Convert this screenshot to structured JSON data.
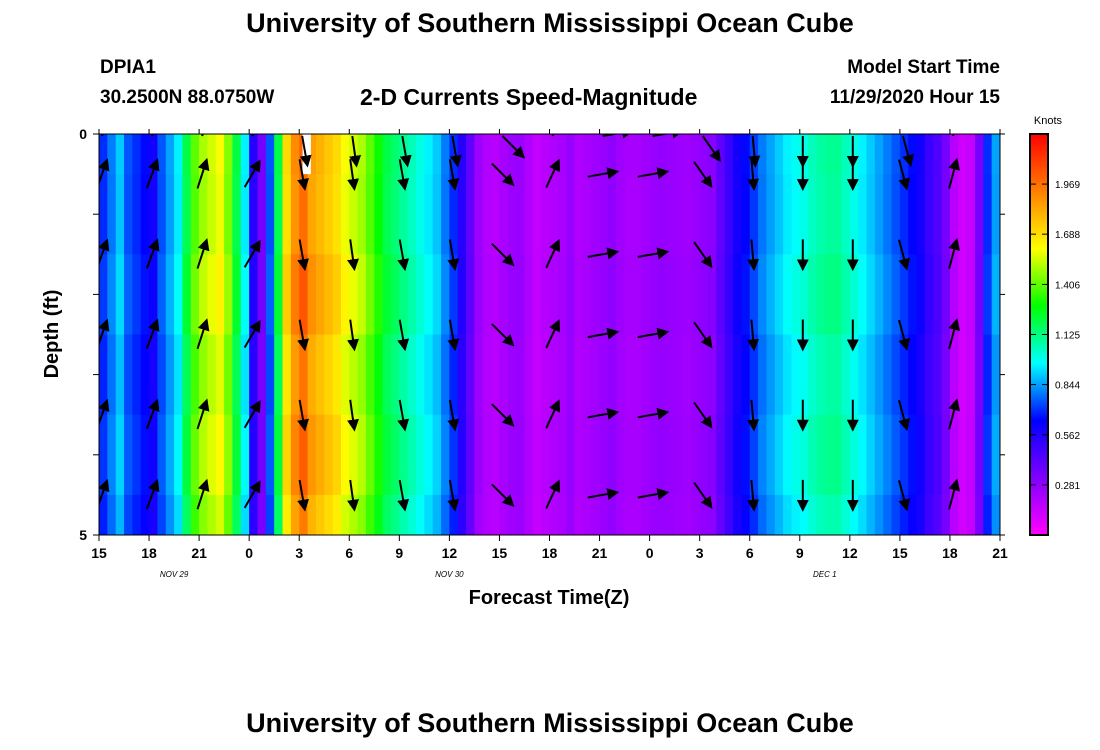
{
  "header": {
    "title": "University of Southern Mississippi Ocean Cube",
    "station_id": "DPIA1",
    "station_coords": "30.2500N 88.0750W",
    "subtitle": "2-D Currents Speed-Magnitude",
    "model_start_label": "Model Start Time",
    "model_start_value": "11/29/2020 Hour 15"
  },
  "footer": {
    "title": "University of Southern Mississippi Ocean Cube"
  },
  "chart_data": {
    "type": "heatmap",
    "title": "2-D Currents Speed-Magnitude",
    "xlabel": "Forecast Time(Z)",
    "ylabel": "Depth (ft)",
    "x_ticks": [
      "15",
      "18",
      "21",
      "0",
      "3",
      "6",
      "9",
      "12",
      "15",
      "18",
      "21",
      "0",
      "3",
      "6",
      "9",
      "12",
      "15",
      "18",
      "21"
    ],
    "x_range_hours": [
      0,
      54
    ],
    "date_labels": [
      {
        "text": "NOV 29",
        "hour": 4.5
      },
      {
        "text": "NOV 30",
        "hour": 21
      },
      {
        "text": "DEC 1",
        "hour": 43.5
      }
    ],
    "y_ticks": [
      "0",
      "5"
    ],
    "ylim": [
      0,
      5
    ],
    "colorbar": {
      "units": "Knots",
      "ticks": [
        "1.969",
        "1.688",
        "1.406",
        "1.125",
        "0.844",
        "0.562",
        "0.281"
      ],
      "tick_values": [
        1.969,
        1.688,
        1.406,
        1.125,
        0.844,
        0.562,
        0.281
      ],
      "range": [
        0,
        2.25
      ],
      "colors": [
        "#ff00ff",
        "#8000ff",
        "#0000ff",
        "#00ffff",
        "#00ff00",
        "#ffff00",
        "#ff8000",
        "#ff0000"
      ]
    },
    "speed_hours": [
      0,
      0.5,
      1,
      1.5,
      2,
      2.5,
      3,
      3.5,
      4,
      4.5,
      5,
      5.5,
      6,
      6.5,
      7,
      7.5,
      8,
      8.5,
      9,
      9.5,
      10,
      10.5,
      11,
      11.5,
      12,
      12.5,
      13,
      13.5,
      14,
      14.5,
      15,
      15.5,
      16,
      16.5,
      17,
      17.5,
      18,
      18.5,
      19,
      19.5,
      20,
      20.5,
      21,
      21.5,
      22,
      22.5,
      23,
      23.5,
      24,
      24.5,
      25,
      25.5,
      26,
      26.5,
      27,
      27.5,
      28,
      28.5,
      29,
      29.5,
      30,
      30.5,
      31,
      31.5,
      32,
      32.5,
      33,
      33.5,
      34,
      34.5,
      35,
      35.5,
      36,
      36.5,
      37,
      37.5,
      38,
      38.5,
      39,
      39.5,
      40,
      40.5,
      41,
      41.5,
      42,
      42.5,
      43,
      43.5,
      44,
      44.5,
      45,
      45.5,
      46,
      46.5,
      47,
      47.5,
      48,
      48.5,
      49,
      49.5,
      50,
      50.5,
      51,
      51.5,
      52,
      52.5,
      53,
      53.5
    ],
    "speed_knots": [
      0.7,
      0.8,
      0.9,
      0.75,
      0.7,
      0.65,
      0.6,
      0.75,
      0.85,
      0.95,
      1.2,
      1.4,
      1.5,
      1.55,
      1.6,
      1.45,
      1.2,
      0.95,
      0.55,
      0.35,
      0.75,
      1.2,
      1.7,
      1.9,
      2.0,
      1.85,
      1.8,
      1.75,
      1.7,
      1.6,
      1.55,
      1.5,
      1.4,
      1.3,
      1.2,
      1.15,
      1.1,
      1.05,
      1.0,
      0.95,
      0.9,
      0.8,
      0.7,
      0.55,
      0.4,
      0.25,
      0.2,
      0.18,
      0.22,
      0.25,
      0.26,
      0.2,
      0.15,
      0.18,
      0.2,
      0.22,
      0.26,
      0.2,
      0.22,
      0.24,
      0.26,
      0.28,
      0.24,
      0.22,
      0.22,
      0.24,
      0.26,
      0.27,
      0.26,
      0.25,
      0.24,
      0.26,
      0.28,
      0.3,
      0.4,
      0.5,
      0.6,
      0.65,
      0.72,
      0.8,
      0.85,
      0.9,
      0.95,
      0.98,
      1.0,
      1.05,
      1.08,
      1.1,
      1.1,
      1.05,
      1.0,
      0.95,
      0.9,
      0.85,
      0.8,
      0.75,
      0.7,
      0.65,
      0.6,
      0.5,
      0.45,
      0.35,
      0.18,
      0.12,
      0.15,
      0.35,
      0.7,
      0.85,
      0.8,
      0.75
    ],
    "vector_rows_ft": [
      0.5,
      1.5,
      2.5,
      3.5,
      4.5
    ],
    "vector_hours": [
      0,
      3,
      6,
      9,
      12,
      15,
      18,
      21,
      24,
      27,
      30,
      33,
      36,
      39,
      42,
      45,
      48,
      51
    ],
    "vector_directions_deg_to": [
      20,
      20,
      18,
      30,
      170,
      172,
      170,
      170,
      135,
      25,
      80,
      80,
      145,
      175,
      180,
      180,
      165,
      15
    ],
    "missing_cell": {
      "hour_start": 12.2,
      "hour_end": 12.7,
      "depth_start_ft": 0,
      "depth_end_ft": 0.5
    }
  }
}
